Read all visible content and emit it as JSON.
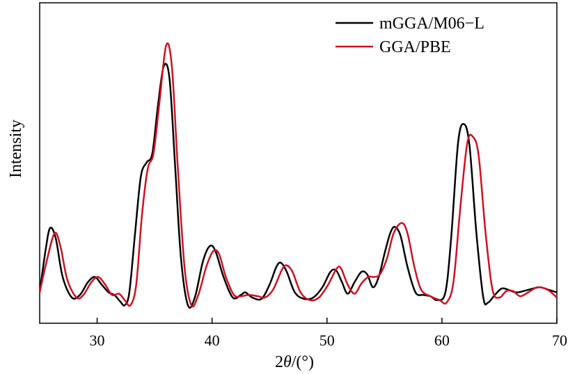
{
  "chart_data": {
    "type": "line",
    "xlabel_prefix": "2",
    "xlabel_symbol": "θ",
    "xlabel_suffix": "/(°)",
    "ylabel": "Intensity",
    "xlim": [
      25,
      70
    ],
    "ylim": [
      0,
      1
    ],
    "x_ticks": [
      30,
      40,
      50,
      60,
      70
    ],
    "x_tick_labels": [
      "30",
      "40",
      "50",
      "60",
      "70"
    ],
    "show_y_ticks": false,
    "grid": false,
    "legend_position": "top-right",
    "series": [
      {
        "name": "mGGA/M06−L",
        "color": "#000000",
        "points": [
          [
            25,
            0.12
          ],
          [
            25.5,
            0.28
          ],
          [
            25.9,
            0.37
          ],
          [
            26.4,
            0.33
          ],
          [
            27.0,
            0.18
          ],
          [
            27.8,
            0.1
          ],
          [
            28.5,
            0.11
          ],
          [
            29.2,
            0.16
          ],
          [
            29.8,
            0.18
          ],
          [
            30.4,
            0.15
          ],
          [
            31.0,
            0.12
          ],
          [
            31.5,
            0.11
          ],
          [
            32.0,
            0.085
          ],
          [
            32.4,
            0.07
          ],
          [
            32.8,
            0.12
          ],
          [
            33.3,
            0.35
          ],
          [
            33.8,
            0.57
          ],
          [
            34.3,
            0.625
          ],
          [
            34.8,
            0.66
          ],
          [
            35.3,
            0.85
          ],
          [
            35.8,
            1.0
          ],
          [
            36.3,
            0.95
          ],
          [
            36.8,
            0.6
          ],
          [
            37.3,
            0.25
          ],
          [
            37.9,
            0.07
          ],
          [
            38.5,
            0.1
          ],
          [
            39.2,
            0.24
          ],
          [
            39.8,
            0.3
          ],
          [
            40.3,
            0.28
          ],
          [
            41.0,
            0.18
          ],
          [
            41.8,
            0.1
          ],
          [
            42.5,
            0.11
          ],
          [
            42.9,
            0.12
          ],
          [
            43.5,
            0.1
          ],
          [
            44.3,
            0.095
          ],
          [
            45.0,
            0.15
          ],
          [
            45.6,
            0.22
          ],
          [
            46.0,
            0.235
          ],
          [
            46.5,
            0.2
          ],
          [
            47.2,
            0.12
          ],
          [
            48.0,
            0.095
          ],
          [
            48.8,
            0.1
          ],
          [
            49.6,
            0.14
          ],
          [
            50.3,
            0.2
          ],
          [
            50.8,
            0.205
          ],
          [
            51.3,
            0.16
          ],
          [
            51.8,
            0.115
          ],
          [
            52.4,
            0.16
          ],
          [
            53.0,
            0.2
          ],
          [
            53.5,
            0.19
          ],
          [
            54.0,
            0.14
          ],
          [
            54.5,
            0.18
          ],
          [
            55.0,
            0.27
          ],
          [
            55.5,
            0.35
          ],
          [
            55.9,
            0.375
          ],
          [
            56.4,
            0.34
          ],
          [
            57.0,
            0.22
          ],
          [
            57.7,
            0.12
          ],
          [
            58.4,
            0.11
          ],
          [
            59.0,
            0.105
          ],
          [
            59.6,
            0.09
          ],
          [
            60.3,
            0.12
          ],
          [
            60.8,
            0.33
          ],
          [
            61.4,
            0.7
          ],
          [
            61.9,
            0.775
          ],
          [
            62.4,
            0.69
          ],
          [
            63.0,
            0.35
          ],
          [
            63.6,
            0.1
          ],
          [
            64.0,
            0.08
          ],
          [
            64.6,
            0.11
          ],
          [
            65.2,
            0.135
          ],
          [
            65.8,
            0.13
          ],
          [
            66.5,
            0.12
          ],
          [
            67.5,
            0.13
          ],
          [
            68.5,
            0.14
          ],
          [
            69.3,
            0.13
          ],
          [
            70,
            0.12
          ]
        ]
      },
      {
        "name": "GGA/PBE",
        "color": "#d0101f",
        "points": [
          [
            25,
            0.12
          ],
          [
            25.6,
            0.24
          ],
          [
            26.3,
            0.35
          ],
          [
            26.8,
            0.3
          ],
          [
            27.4,
            0.17
          ],
          [
            28.2,
            0.1
          ],
          [
            28.8,
            0.11
          ],
          [
            29.5,
            0.16
          ],
          [
            30.1,
            0.18
          ],
          [
            30.7,
            0.15
          ],
          [
            31.3,
            0.11
          ],
          [
            31.9,
            0.115
          ],
          [
            32.4,
            0.09
          ],
          [
            32.9,
            0.07
          ],
          [
            33.4,
            0.15
          ],
          [
            33.9,
            0.42
          ],
          [
            34.4,
            0.6
          ],
          [
            34.9,
            0.66
          ],
          [
            35.4,
            0.85
          ],
          [
            36.0,
            1.08
          ],
          [
            36.5,
            1.0
          ],
          [
            37.0,
            0.62
          ],
          [
            37.6,
            0.22
          ],
          [
            38.2,
            0.07
          ],
          [
            38.8,
            0.11
          ],
          [
            39.5,
            0.22
          ],
          [
            40.1,
            0.28
          ],
          [
            40.6,
            0.27
          ],
          [
            41.2,
            0.18
          ],
          [
            41.9,
            0.11
          ],
          [
            42.5,
            0.105
          ],
          [
            43.2,
            0.11
          ],
          [
            44.0,
            0.105
          ],
          [
            44.6,
            0.1
          ],
          [
            45.3,
            0.13
          ],
          [
            46.1,
            0.21
          ],
          [
            46.5,
            0.225
          ],
          [
            47.0,
            0.2
          ],
          [
            47.7,
            0.12
          ],
          [
            48.5,
            0.09
          ],
          [
            49.3,
            0.1
          ],
          [
            50.1,
            0.15
          ],
          [
            50.8,
            0.21
          ],
          [
            51.2,
            0.215
          ],
          [
            51.8,
            0.15
          ],
          [
            52.4,
            0.115
          ],
          [
            53.0,
            0.155
          ],
          [
            53.6,
            0.18
          ],
          [
            54.1,
            0.18
          ],
          [
            54.6,
            0.19
          ],
          [
            55.2,
            0.25
          ],
          [
            55.8,
            0.35
          ],
          [
            56.5,
            0.39
          ],
          [
            57.0,
            0.35
          ],
          [
            57.6,
            0.22
          ],
          [
            58.2,
            0.13
          ],
          [
            59.0,
            0.105
          ],
          [
            59.8,
            0.09
          ],
          [
            60.4,
            0.08
          ],
          [
            61.0,
            0.16
          ],
          [
            61.6,
            0.45
          ],
          [
            62.2,
            0.7
          ],
          [
            62.7,
            0.725
          ],
          [
            63.2,
            0.65
          ],
          [
            63.8,
            0.35
          ],
          [
            64.4,
            0.13
          ],
          [
            65.0,
            0.1
          ],
          [
            65.6,
            0.125
          ],
          [
            66.2,
            0.125
          ],
          [
            66.8,
            0.105
          ],
          [
            67.5,
            0.12
          ],
          [
            68.3,
            0.14
          ],
          [
            69.2,
            0.13
          ],
          [
            70,
            0.1
          ]
        ]
      }
    ]
  }
}
